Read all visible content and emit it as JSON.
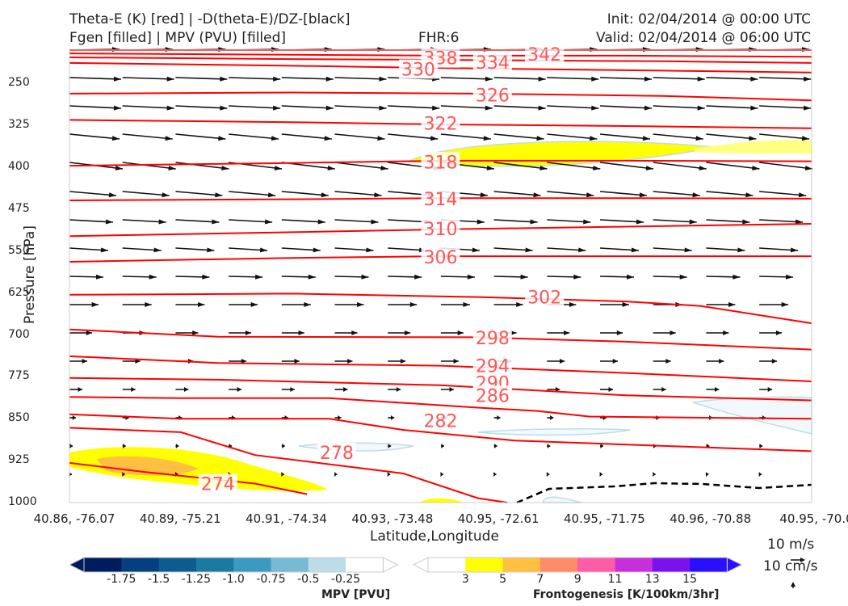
{
  "header": {
    "title_left_1": "Theta-E (K) [red] | -D(theta-E)/DZ-[black]",
    "title_left_2": "Fgen [filled] | MPV (PVU) [filled]",
    "fhr": "FHR:6",
    "init": "Init: 02/04/2014 @ 00:00 UTC",
    "valid": "Valid: 02/04/2014 @ 06:00 UTC"
  },
  "chart_data": {
    "type": "cross-section",
    "xlabel": "Latitude,Longitude",
    "ylabel": "Pressure [hPa]",
    "y_ticks": [
      "250",
      "325",
      "400",
      "475",
      "550",
      "625",
      "700",
      "775",
      "850",
      "925",
      "1000"
    ],
    "x_ticks": [
      "40.86, -76.07",
      "40.89, -75.21",
      "40.91, -74.34",
      "40.93, -73.48",
      "40.95, -72.61",
      "40.95, -71.75",
      "40.96, -70.88",
      "40.95, -70.0"
    ],
    "ylim": [
      1000,
      190
    ],
    "theta_e_contours": [
      {
        "label": "342",
        "points": [
          [
            0,
            190
          ],
          [
            1,
            190
          ]
        ]
      },
      {
        "label": "338",
        "points": [
          [
            0,
            196
          ],
          [
            0.25,
            198
          ],
          [
            0.5,
            200
          ],
          [
            0.75,
            200
          ],
          [
            1,
            202
          ]
        ]
      },
      {
        "label": "334",
        "points": [
          [
            0,
            203
          ],
          [
            0.3,
            206
          ],
          [
            0.55,
            208
          ],
          [
            0.8,
            210
          ],
          [
            1,
            213
          ]
        ]
      },
      {
        "label": "330",
        "points": [
          [
            0,
            213
          ],
          [
            0.3,
            218
          ],
          [
            0.5,
            222
          ],
          [
            0.75,
            226
          ],
          [
            1,
            230
          ]
        ]
      },
      {
        "label": "326",
        "points": [
          [
            0,
            268
          ],
          [
            0.3,
            266
          ],
          [
            0.55,
            268
          ],
          [
            0.8,
            272
          ],
          [
            1,
            280
          ]
        ]
      },
      {
        "label": "322",
        "points": [
          [
            0,
            315
          ],
          [
            0.3,
            319
          ],
          [
            0.5,
            323
          ],
          [
            0.75,
            326
          ],
          [
            1,
            330
          ]
        ]
      },
      {
        "label": "318",
        "points": [
          [
            0,
            397
          ],
          [
            0.3,
            392
          ],
          [
            0.5,
            388
          ],
          [
            0.75,
            388
          ],
          [
            1,
            389
          ]
        ]
      },
      {
        "label": "314",
        "points": [
          [
            0,
            459
          ],
          [
            0.3,
            457
          ],
          [
            0.5,
            455
          ],
          [
            0.75,
            455
          ],
          [
            1,
            456
          ]
        ]
      },
      {
        "label": "310",
        "points": [
          [
            0,
            523
          ],
          [
            0.3,
            516
          ],
          [
            0.5,
            511
          ],
          [
            0.75,
            506
          ],
          [
            1,
            501
          ]
        ]
      },
      {
        "label": "306",
        "points": [
          [
            0,
            569
          ],
          [
            0.3,
            562
          ],
          [
            0.5,
            559
          ],
          [
            0.75,
            559
          ],
          [
            1,
            559
          ]
        ]
      },
      {
        "label": "302",
        "points": [
          [
            0,
            628
          ],
          [
            0.3,
            626
          ],
          [
            0.55,
            632
          ],
          [
            0.75,
            640
          ],
          [
            0.85,
            648
          ],
          [
            1,
            679
          ]
        ]
      },
      {
        "label": "298",
        "points": [
          [
            0,
            690
          ],
          [
            0.2,
            703
          ],
          [
            0.55,
            704
          ],
          [
            0.75,
            712
          ],
          [
            1,
            726
          ]
        ]
      },
      {
        "label": "294",
        "points": [
          [
            0,
            738
          ],
          [
            0.2,
            750
          ],
          [
            0.5,
            755
          ],
          [
            0.75,
            768
          ],
          [
            1,
            783
          ]
        ]
      },
      {
        "label": "290",
        "points": [
          [
            0,
            777
          ],
          [
            0.2,
            780
          ],
          [
            0.5,
            790
          ],
          [
            0.75,
            808
          ],
          [
            1,
            817
          ]
        ]
      },
      {
        "label": "286",
        "points": [
          [
            0,
            811
          ],
          [
            0.15,
            813
          ],
          [
            0.35,
            813
          ],
          [
            0.55,
            830
          ],
          [
            0.63,
            836
          ],
          [
            0.7,
            846
          ],
          [
            1,
            850
          ]
        ]
      },
      {
        "label": "282",
        "points": [
          [
            0,
            842
          ],
          [
            0.15,
            850
          ],
          [
            0.35,
            850
          ],
          [
            0.45,
            870
          ],
          [
            0.6,
            889
          ],
          [
            1,
            908
          ]
        ]
      },
      {
        "label": "278",
        "points": [
          [
            0,
            866
          ],
          [
            0.15,
            874
          ],
          [
            0.25,
            915
          ],
          [
            0.45,
            948
          ],
          [
            0.55,
            992
          ],
          [
            0.59,
            1000
          ]
        ]
      },
      {
        "label": "274",
        "points": [
          [
            0,
            929
          ],
          [
            0.1,
            945
          ],
          [
            0.25,
            966
          ],
          [
            0.32,
            985
          ]
        ]
      }
    ],
    "mpv_levels": [
      "-1.75",
      "-1.5",
      "-1.25",
      "-1.0",
      "-0.75",
      "-0.5",
      "-0.25"
    ],
    "mpv_colors": [
      "#001c5c",
      "#043f7f",
      "#0c5d8d",
      "#1b7aa0",
      "#3a9ac0",
      "#78b9d3",
      "#bcdde8",
      "#ffffff"
    ],
    "mpv_label": "MPV [PVU]",
    "fgen_levels": [
      "3",
      "5",
      "7",
      "9",
      "11",
      "13",
      "15"
    ],
    "fgen_colors": [
      "#ffffff",
      "#ffff00",
      "#ffbf40",
      "#ff8c69",
      "#ff5ca8",
      "#c82fdc",
      "#7a12f0",
      "#2a0fff"
    ],
    "fgen_label": "Frontogenesis [K/100km/3hr]",
    "wind_key_h": "10 m/s",
    "wind_key_v": "10 cm/s",
    "colors": {
      "theta_e": "#ff0000",
      "label": "#ff5555",
      "arrow": "#111111"
    }
  }
}
